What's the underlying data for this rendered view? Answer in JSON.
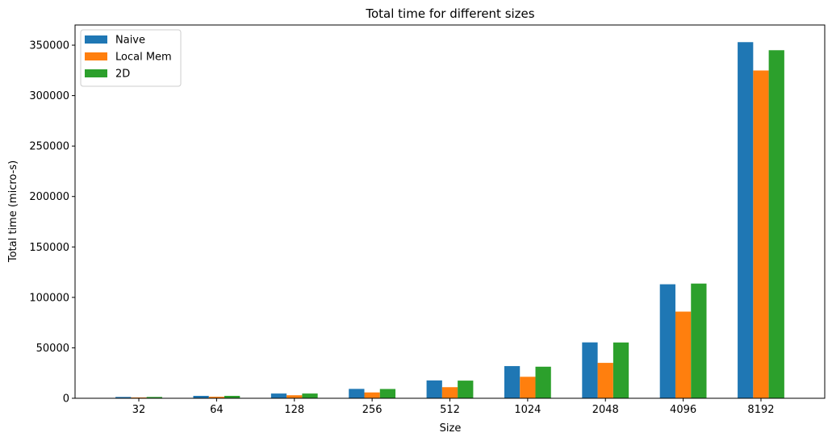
{
  "chart_data": {
    "type": "bar",
    "title": "Total time for different sizes",
    "xlabel": "Size",
    "ylabel": "Total time (micro-s)",
    "categories": [
      "32",
      "64",
      "128",
      "256",
      "512",
      "1024",
      "2048",
      "4096",
      "8192"
    ],
    "series": [
      {
        "name": "Naive",
        "color": "#1f77b4",
        "values": [
          1300,
          2400,
          4700,
          9300,
          17700,
          31900,
          55400,
          113000,
          353000
        ]
      },
      {
        "name": "Local Mem",
        "color": "#ff7f0e",
        "values": [
          800,
          1500,
          3000,
          5800,
          11000,
          21300,
          35100,
          85900,
          324900
        ]
      },
      {
        "name": "2D",
        "color": "#2ca02c",
        "values": [
          1300,
          2400,
          4700,
          9200,
          17500,
          31300,
          55300,
          113700,
          345000
        ]
      }
    ],
    "ylim": [
      0,
      370000
    ],
    "yticks": [
      0,
      50000,
      100000,
      150000,
      200000,
      250000,
      300000,
      350000
    ],
    "ytick_labels": [
      "0",
      "50000",
      "100000",
      "150000",
      "200000",
      "250000",
      "300000",
      "350000"
    ],
    "grid": false,
    "legend_position": "top-left"
  }
}
